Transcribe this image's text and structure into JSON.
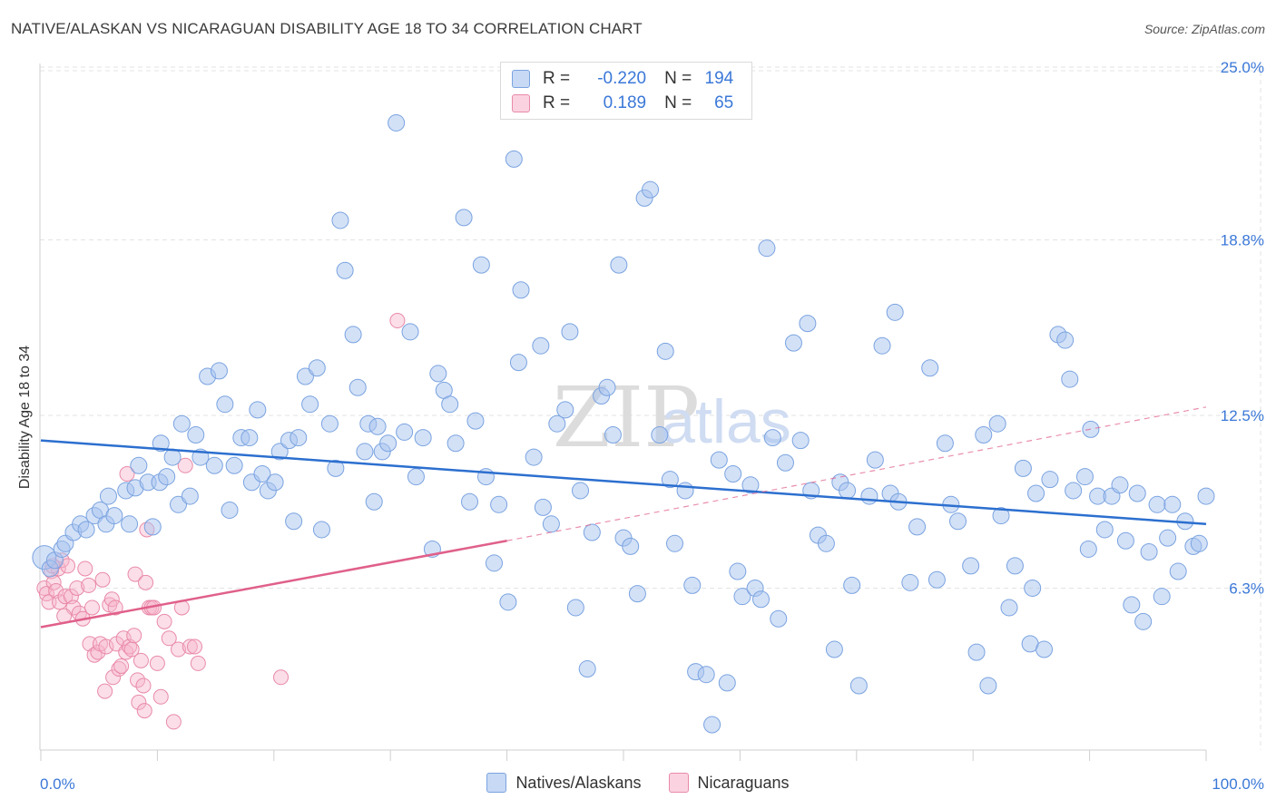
{
  "header": {
    "title": "NATIVE/ALASKAN VS NICARAGUAN DISABILITY AGE 18 TO 34 CORRELATION CHART",
    "source": "Source: ZipAtlas.com"
  },
  "watermark": "ZIPatlas",
  "legend": {
    "rows": [
      {
        "r_label": "R =",
        "r_value": "-0.220",
        "n_label": "N =",
        "n_value": "194",
        "color": "#a8c4ef"
      },
      {
        "r_label": "R =",
        "r_value": "0.189",
        "n_label": "N =",
        "n_value": "65",
        "color": "#f6b6cb"
      }
    ]
  },
  "bottom_legend": [
    {
      "label": "Natives/Alaskans",
      "color": "#a8c4ef"
    },
    {
      "label": "Nicaraguans",
      "color": "#f6b6cb"
    }
  ],
  "colors": {
    "blue_fill": "#a8c4ef",
    "blue_stroke": "#7aa3e0",
    "blue_line": "#2c6fcf",
    "pink_fill": "#f6b6cb",
    "pink_stroke": "#e98aa8",
    "pink_line": "#e0608a",
    "tick_label": "#3b78d8",
    "grid": "#e3e3e3"
  },
  "chart_data": {
    "type": "scatter",
    "title": "NATIVE/ALASKAN VS NICARAGUAN DISABILITY AGE 18 TO 34 CORRELATION CHART",
    "ylabel": "Disability Age 18 to 34",
    "xlabel": "",
    "x_tick_labels": [
      "0.0%",
      "100.0%"
    ],
    "y_tick_labels": [
      "6.3%",
      "12.5%",
      "18.8%",
      "25.0%"
    ],
    "y_ticks": [
      6.3,
      12.5,
      18.8,
      25.0
    ],
    "xlim": [
      0,
      100
    ],
    "ylim": [
      0,
      26.2
    ],
    "grid": true,
    "series": [
      {
        "name": "Natives/Alaskans",
        "R": -0.22,
        "N": 194,
        "trend": {
          "x": [
            0,
            100
          ],
          "y": [
            11.6,
            8.6
          ]
        },
        "points": [
          [
            0.3,
            7.4
          ],
          [
            0.8,
            7.0
          ],
          [
            1.2,
            7.3
          ],
          [
            1.8,
            7.7
          ],
          [
            2.1,
            7.9
          ],
          [
            2.8,
            8.3
          ],
          [
            3.4,
            8.6
          ],
          [
            3.9,
            8.4
          ],
          [
            4.6,
            8.9
          ],
          [
            5.1,
            9.1
          ],
          [
            5.6,
            8.6
          ],
          [
            5.8,
            9.6
          ],
          [
            6.3,
            8.9
          ],
          [
            7.3,
            9.8
          ],
          [
            7.6,
            8.6
          ],
          [
            8.1,
            9.9
          ],
          [
            8.4,
            10.7
          ],
          [
            9.2,
            10.1
          ],
          [
            9.6,
            8.5
          ],
          [
            10.2,
            10.1
          ],
          [
            10.3,
            11.5
          ],
          [
            10.8,
            10.3
          ],
          [
            11.3,
            11.0
          ],
          [
            11.8,
            9.3
          ],
          [
            12.1,
            12.2
          ],
          [
            12.8,
            9.6
          ],
          [
            13.3,
            11.8
          ],
          [
            13.7,
            11.0
          ],
          [
            14.3,
            13.9
          ],
          [
            14.9,
            10.7
          ],
          [
            15.3,
            14.1
          ],
          [
            15.8,
            12.9
          ],
          [
            16.2,
            9.1
          ],
          [
            16.6,
            10.7
          ],
          [
            17.2,
            11.7
          ],
          [
            17.9,
            11.7
          ],
          [
            18.1,
            10.1
          ],
          [
            18.6,
            12.7
          ],
          [
            19.0,
            10.4
          ],
          [
            19.5,
            9.8
          ],
          [
            20.1,
            10.1
          ],
          [
            20.5,
            11.2
          ],
          [
            21.3,
            11.6
          ],
          [
            21.7,
            8.7
          ],
          [
            22.1,
            11.7
          ],
          [
            22.7,
            13.9
          ],
          [
            23.1,
            12.9
          ],
          [
            23.7,
            14.2
          ],
          [
            24.1,
            8.4
          ],
          [
            24.8,
            12.2
          ],
          [
            25.3,
            10.6
          ],
          [
            25.7,
            19.5
          ],
          [
            26.1,
            17.7
          ],
          [
            26.8,
            15.4
          ],
          [
            27.2,
            13.5
          ],
          [
            27.8,
            11.2
          ],
          [
            28.1,
            12.2
          ],
          [
            28.6,
            9.4
          ],
          [
            28.9,
            12.1
          ],
          [
            29.3,
            11.2
          ],
          [
            29.8,
            11.5
          ],
          [
            30.5,
            23.0
          ],
          [
            31.2,
            11.9
          ],
          [
            31.7,
            15.5
          ],
          [
            32.2,
            10.3
          ],
          [
            32.8,
            11.7
          ],
          [
            33.6,
            7.7
          ],
          [
            34.1,
            14.0
          ],
          [
            34.6,
            13.4
          ],
          [
            35.1,
            12.9
          ],
          [
            35.6,
            11.5
          ],
          [
            36.3,
            19.6
          ],
          [
            36.8,
            9.4
          ],
          [
            37.3,
            12.3
          ],
          [
            37.8,
            17.9
          ],
          [
            38.2,
            10.3
          ],
          [
            38.9,
            7.2
          ],
          [
            39.3,
            9.3
          ],
          [
            40.1,
            5.8
          ],
          [
            40.6,
            21.7
          ],
          [
            41.0,
            14.4
          ],
          [
            41.2,
            17.0
          ],
          [
            42.3,
            11.0
          ],
          [
            42.9,
            15.0
          ],
          [
            43.1,
            9.2
          ],
          [
            43.8,
            8.6
          ],
          [
            44.3,
            12.2
          ],
          [
            45.0,
            12.7
          ],
          [
            45.4,
            15.5
          ],
          [
            45.9,
            5.6
          ],
          [
            46.3,
            9.8
          ],
          [
            46.9,
            3.4
          ],
          [
            47.3,
            8.3
          ],
          [
            48.1,
            13.2
          ],
          [
            48.6,
            13.5
          ],
          [
            49.1,
            11.8
          ],
          [
            49.6,
            17.9
          ],
          [
            50.0,
            8.1
          ],
          [
            50.6,
            7.8
          ],
          [
            51.2,
            6.1
          ],
          [
            51.8,
            20.3
          ],
          [
            52.3,
            20.6
          ],
          [
            53.1,
            11.8
          ],
          [
            53.6,
            14.8
          ],
          [
            54.0,
            10.2
          ],
          [
            54.4,
            7.9
          ],
          [
            55.3,
            9.8
          ],
          [
            55.9,
            6.4
          ],
          [
            56.2,
            3.3
          ],
          [
            57.1,
            3.2
          ],
          [
            57.6,
            1.4
          ],
          [
            58.2,
            10.9
          ],
          [
            58.9,
            2.9
          ],
          [
            59.4,
            10.4
          ],
          [
            59.8,
            6.9
          ],
          [
            60.2,
            6.0
          ],
          [
            60.9,
            10.0
          ],
          [
            61.3,
            6.3
          ],
          [
            61.8,
            5.9
          ],
          [
            62.3,
            18.5
          ],
          [
            62.8,
            11.7
          ],
          [
            63.3,
            5.2
          ],
          [
            63.9,
            10.8
          ],
          [
            64.6,
            15.1
          ],
          [
            65.2,
            11.6
          ],
          [
            65.8,
            15.8
          ],
          [
            66.1,
            9.8
          ],
          [
            66.7,
            8.2
          ],
          [
            67.4,
            7.9
          ],
          [
            68.1,
            4.1
          ],
          [
            68.6,
            10.1
          ],
          [
            69.2,
            9.8
          ],
          [
            69.6,
            6.4
          ],
          [
            70.2,
            2.8
          ],
          [
            71.1,
            9.6
          ],
          [
            71.6,
            10.9
          ],
          [
            72.2,
            15.0
          ],
          [
            72.9,
            9.7
          ],
          [
            73.3,
            16.2
          ],
          [
            73.6,
            9.4
          ],
          [
            74.6,
            6.5
          ],
          [
            75.2,
            8.5
          ],
          [
            76.3,
            14.2
          ],
          [
            76.9,
            6.6
          ],
          [
            77.6,
            11.5
          ],
          [
            78.1,
            9.3
          ],
          [
            78.7,
            8.7
          ],
          [
            79.8,
            7.1
          ],
          [
            80.3,
            4.0
          ],
          [
            80.9,
            11.8
          ],
          [
            81.3,
            2.8
          ],
          [
            82.1,
            12.2
          ],
          [
            82.4,
            8.9
          ],
          [
            83.1,
            5.6
          ],
          [
            83.6,
            7.1
          ],
          [
            84.3,
            10.6
          ],
          [
            84.9,
            4.3
          ],
          [
            85.1,
            6.3
          ],
          [
            85.4,
            9.7
          ],
          [
            86.1,
            4.1
          ],
          [
            86.6,
            10.2
          ],
          [
            87.3,
            15.4
          ],
          [
            87.9,
            15.2
          ],
          [
            88.3,
            13.8
          ],
          [
            88.6,
            9.8
          ],
          [
            89.6,
            10.3
          ],
          [
            89.9,
            7.7
          ],
          [
            90.1,
            12.0
          ],
          [
            90.7,
            9.6
          ],
          [
            91.3,
            8.4
          ],
          [
            91.9,
            9.6
          ],
          [
            92.6,
            10.0
          ],
          [
            93.1,
            8.0
          ],
          [
            93.6,
            5.7
          ],
          [
            94.1,
            9.7
          ],
          [
            94.6,
            5.1
          ],
          [
            95.1,
            7.6
          ],
          [
            95.8,
            9.3
          ],
          [
            96.2,
            6.0
          ],
          [
            96.7,
            8.1
          ],
          [
            97.1,
            9.3
          ],
          [
            97.6,
            6.9
          ],
          [
            98.2,
            8.7
          ],
          [
            98.9,
            7.8
          ],
          [
            99.4,
            7.9
          ],
          [
            100.0,
            9.6
          ]
        ]
      },
      {
        "name": "Nicaraguans",
        "R": 0.189,
        "N": 65,
        "trend": {
          "x": [
            0,
            40
          ],
          "y": [
            4.9,
            8.0
          ],
          "x_dashed": [
            40,
            100
          ],
          "y_dashed": [
            8.0,
            12.8
          ]
        },
        "points": [
          [
            0.3,
            6.3
          ],
          [
            0.5,
            6.1
          ],
          [
            0.7,
            5.8
          ],
          [
            0.9,
            6.9
          ],
          [
            1.1,
            6.5
          ],
          [
            1.3,
            6.2
          ],
          [
            1.5,
            7.0
          ],
          [
            1.6,
            5.8
          ],
          [
            1.8,
            7.3
          ],
          [
            2.1,
            6.0
          ],
          [
            2.3,
            7.1
          ],
          [
            2.6,
            6.0
          ],
          [
            2.8,
            5.6
          ],
          [
            3.1,
            6.3
          ],
          [
            3.3,
            5.4
          ],
          [
            3.6,
            5.2
          ],
          [
            3.8,
            7.0
          ],
          [
            4.1,
            6.4
          ],
          [
            4.2,
            4.3
          ],
          [
            4.4,
            5.6
          ],
          [
            4.6,
            3.9
          ],
          [
            4.9,
            4.0
          ],
          [
            5.1,
            4.3
          ],
          [
            5.3,
            6.6
          ],
          [
            5.5,
            2.6
          ],
          [
            5.6,
            4.2
          ],
          [
            5.9,
            5.7
          ],
          [
            6.1,
            5.9
          ],
          [
            6.2,
            3.1
          ],
          [
            6.4,
            5.6
          ],
          [
            6.5,
            4.3
          ],
          [
            6.7,
            3.4
          ],
          [
            6.9,
            3.5
          ],
          [
            7.1,
            4.5
          ],
          [
            7.3,
            4.0
          ],
          [
            7.4,
            10.4
          ],
          [
            7.6,
            4.2
          ],
          [
            7.8,
            4.1
          ],
          [
            8.0,
            4.6
          ],
          [
            8.1,
            6.8
          ],
          [
            8.3,
            3.0
          ],
          [
            8.4,
            2.2
          ],
          [
            8.6,
            3.7
          ],
          [
            8.8,
            2.8
          ],
          [
            8.9,
            1.9
          ],
          [
            9.0,
            6.5
          ],
          [
            9.1,
            8.4
          ],
          [
            9.3,
            5.6
          ],
          [
            9.5,
            5.6
          ],
          [
            9.7,
            5.6
          ],
          [
            10.0,
            3.6
          ],
          [
            10.3,
            2.4
          ],
          [
            10.6,
            5.1
          ],
          [
            11.0,
            4.5
          ],
          [
            11.4,
            1.5
          ],
          [
            11.8,
            4.1
          ],
          [
            12.1,
            5.6
          ],
          [
            12.4,
            10.7
          ],
          [
            12.8,
            4.2
          ],
          [
            13.2,
            4.2
          ],
          [
            13.5,
            3.6
          ],
          [
            20.6,
            3.1
          ],
          [
            30.6,
            15.9
          ],
          [
            1.0,
            7.1
          ],
          [
            2.0,
            5.3
          ]
        ]
      }
    ]
  }
}
